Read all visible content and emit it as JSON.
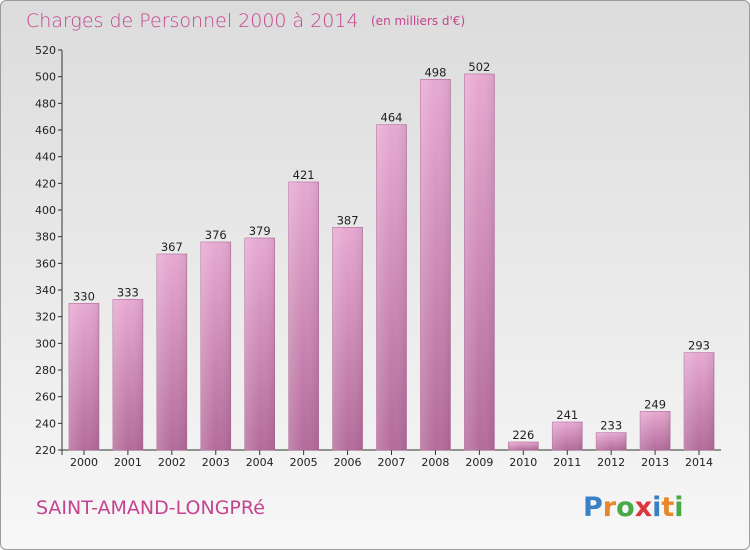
{
  "title": "Charges de Personnel 2000 à 2014",
  "subtitle": "(en milliers d'€)",
  "place": "SAINT-AMAND-LONGPRé",
  "logo": {
    "text": "Proxiti",
    "letters": [
      {
        "ch": "P",
        "color": "#3b7fc4"
      },
      {
        "ch": "r",
        "color": "#e8862a"
      },
      {
        "ch": "o",
        "color": "#49a847"
      },
      {
        "ch": "x",
        "color": "#d9363e"
      },
      {
        "ch": "i",
        "color": "#3b7fc4"
      },
      {
        "ch": "t",
        "color": "#e8862a"
      },
      {
        "ch": "i",
        "color": "#49a847"
      }
    ]
  },
  "colors": {
    "accent": "#c4448f",
    "bar_top": "#e7a9d2",
    "bar_bottom": "#b46c9b"
  },
  "chart_data": {
    "type": "bar",
    "title": "Charges de Personnel 2000 à 2014",
    "subtitle": "(en milliers d'€)",
    "xlabel": "",
    "ylabel": "",
    "categories": [
      "2000",
      "2001",
      "2002",
      "2003",
      "2004",
      "2005",
      "2006",
      "2007",
      "2008",
      "2009",
      "2010",
      "2011",
      "2012",
      "2013",
      "2014"
    ],
    "values": [
      330,
      333,
      367,
      376,
      379,
      421,
      387,
      464,
      498,
      502,
      226,
      241,
      233,
      249,
      293
    ],
    "ylim": [
      220,
      520
    ],
    "yticks": [
      220,
      240,
      260,
      280,
      300,
      320,
      340,
      360,
      380,
      400,
      420,
      440,
      460,
      480,
      500,
      520
    ],
    "grid": false,
    "legend": "none"
  }
}
